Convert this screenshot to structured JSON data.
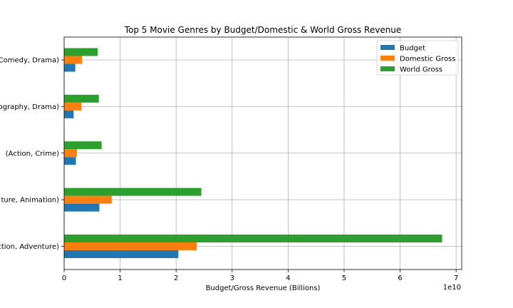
{
  "chart_data": {
    "type": "bar",
    "orientation": "horizontal",
    "title": "Top 5 Movie Genres by Budget/Domestic & World Gross Revenue",
    "xlabel": "Budget/Gross Revenue (Billions)",
    "ylabel": "",
    "x_offset_label": "1e10",
    "xlim": [
      0,
      7.1
    ],
    "x_ticks": [
      0,
      1,
      2,
      3,
      4,
      5,
      6,
      7
    ],
    "grid": true,
    "legend_position": "top-right",
    "categories": [
      "Action, Adventure)",
      "ture, Animation)",
      "(Action, Crime)",
      "ography, Drama)",
      "Comedy, Drama)"
    ],
    "series": [
      {
        "name": "Budget",
        "color": "#1f77b4",
        "values": [
          2.04,
          0.63,
          0.21,
          0.17,
          0.2
        ]
      },
      {
        "name": "Domestic Gross",
        "color": "#ff7f0e",
        "values": [
          2.37,
          0.85,
          0.23,
          0.31,
          0.32
        ]
      },
      {
        "name": "World Gross",
        "color": "#2ca02c",
        "values": [
          6.75,
          2.45,
          0.67,
          0.62,
          0.6
        ]
      }
    ]
  }
}
